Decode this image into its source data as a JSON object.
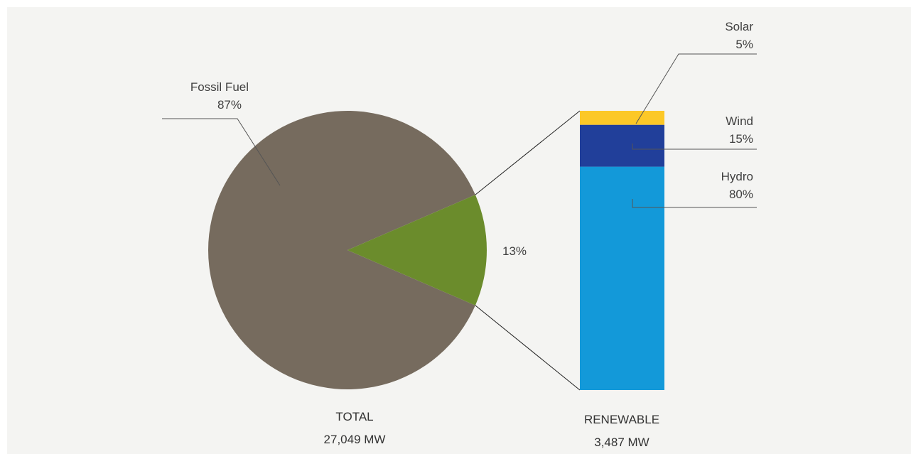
{
  "chart_data": [
    {
      "type": "pie",
      "caption_title": "TOTAL",
      "caption_value": "27,049 MW",
      "slices": [
        {
          "name": "Fossil Fuel",
          "value": 87,
          "label": "87%",
          "color": "#766b5e"
        },
        {
          "name": "",
          "value": 13,
          "label": "13%",
          "color": "#6b8c2c"
        }
      ]
    },
    {
      "type": "bar",
      "stacked": true,
      "caption_title": "RENEWABLE",
      "caption_value": "3,487 MW",
      "segments": [
        {
          "name": "Hydro",
          "value": 80,
          "label": "80%",
          "color": "#1399d9"
        },
        {
          "name": "Wind",
          "value": 15,
          "label": "15%",
          "color": "#213f9a"
        },
        {
          "name": "Solar",
          "value": 5,
          "label": "5%",
          "color": "#fcc827"
        }
      ]
    }
  ]
}
